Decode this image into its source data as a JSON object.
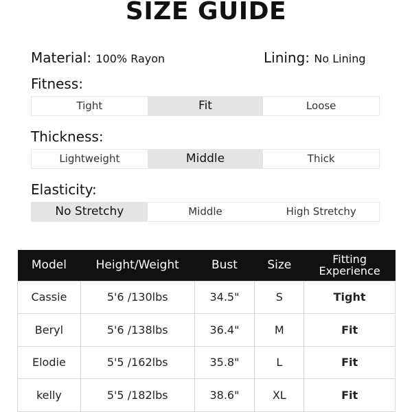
{
  "title": "SIZE GUIDE",
  "material": {
    "label": "Material:",
    "value": "100% Rayon"
  },
  "lining": {
    "label": "Lining:",
    "value": "No Lining"
  },
  "scales": [
    {
      "label": "Fitness:",
      "options": [
        "Tight",
        "Fit",
        "Loose"
      ],
      "selected": 1
    },
    {
      "label": "Thickness:",
      "options": [
        "Lightweight",
        "Middle",
        "Thick"
      ],
      "selected": 1
    },
    {
      "label": "Elasticity:",
      "options": [
        "No Stretchy",
        "Middle",
        "High Stretchy"
      ],
      "selected": 0
    }
  ],
  "table": {
    "headers": [
      "Model",
      "Height/Weight",
      "Bust",
      "Size",
      "Fitting Experience"
    ],
    "rows": [
      [
        "Cassie",
        "5'6 /130lbs",
        "34.5\"",
        "S",
        "Tight"
      ],
      [
        "Beryl",
        "5'6 /138lbs",
        "36.4\"",
        "M",
        "Fit"
      ],
      [
        "Elodie",
        "5'5 /162lbs",
        "35.8\"",
        "L",
        "Fit"
      ],
      [
        "kelly",
        "5'5 /182lbs",
        "38.6\"",
        "XL",
        "Fit"
      ]
    ]
  },
  "colors": {
    "header_bg": "#111111",
    "selected_bg": "#e4e4e4"
  }
}
